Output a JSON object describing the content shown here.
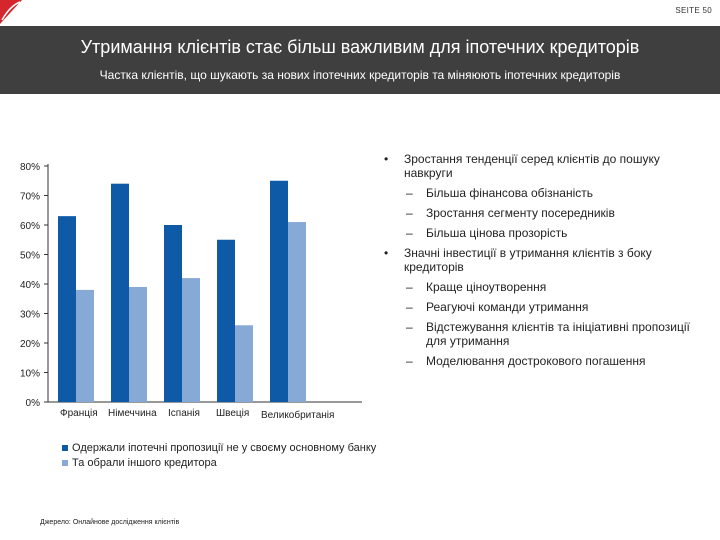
{
  "page": {
    "number": "SEITE 50"
  },
  "header": {
    "title": "Утримання клієнтів стає більш важливим для іпотечних кредиторів",
    "subtitle": "Частка клієнтів, що шукають за нових іпотечних кредиторів та міняюють іпотечних кредиторів"
  },
  "colors": {
    "header_bg": "#3f3f3f",
    "series_dark": "#0e5aa7",
    "series_light": "#86a9d6",
    "logo_red": "#d5262d"
  },
  "chart_data": {
    "type": "bar",
    "categories": [
      "Франція",
      "Німеччина",
      "Іспанія",
      "Швеція",
      "Великобританія"
    ],
    "series": [
      {
        "name": "Одержали іпотечні пропозиції не у своєму основному банку",
        "values": [
          63,
          74,
          60,
          55,
          75
        ]
      },
      {
        "name": "Та обрали іншого кредитора",
        "values": [
          38,
          39,
          42,
          26,
          61
        ]
      }
    ],
    "yticks": [
      "0%",
      "10%",
      "20%",
      "30%",
      "40%",
      "50%",
      "60%",
      "70%",
      "80%"
    ],
    "ylim": [
      0,
      80
    ],
    "title": "",
    "xlabel": "",
    "ylabel": "",
    "grid": false,
    "legend_position": "bottom"
  },
  "bullets": [
    {
      "level": 1,
      "text": "Зростання тенденції серед клієнтів до пошуку навкруги"
    },
    {
      "level": 2,
      "text": "Більша фінансова обізнаність"
    },
    {
      "level": 2,
      "text": "Зростання сегменту посередників"
    },
    {
      "level": 2,
      "text": "Більша цінова прозорість"
    },
    {
      "level": 1,
      "text": "Значні інвестиції в утримання клієнтів з боку кредиторів"
    },
    {
      "level": 2,
      "text": "Краще ціноутворення"
    },
    {
      "level": 2,
      "text": "Реагуючі команди утримання"
    },
    {
      "level": 2,
      "text": "Відстежування клієнтів та ініціативні пропозиції для утримання"
    },
    {
      "level": 2,
      "text": "Моделювання дострокового погашення"
    }
  ],
  "bullet_symbols": {
    "dot": "•",
    "dash": "–"
  },
  "source": "Джерело: Онлайнове дослідження клієнтів"
}
